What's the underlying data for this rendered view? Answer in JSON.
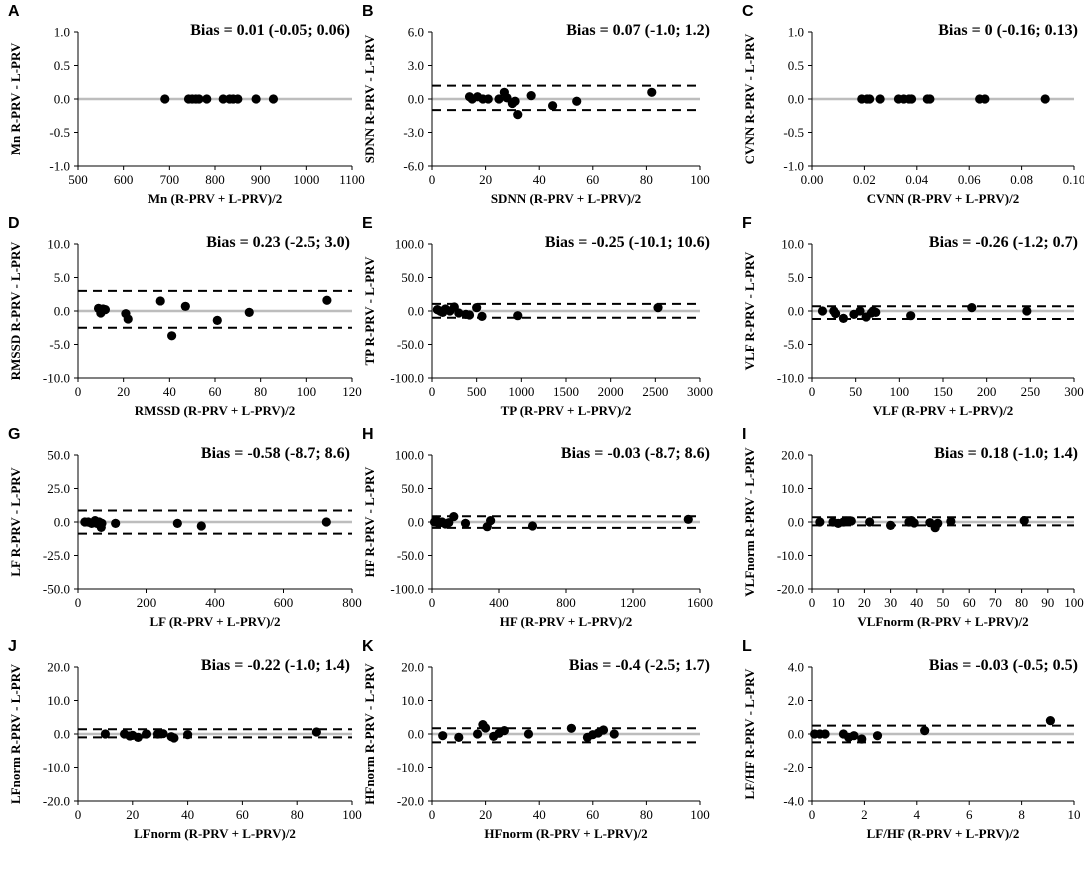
{
  "chart_data": [
    {
      "id": "A",
      "type": "scatter",
      "bias_text": "Bias = 0.01 (-0.05; 0.06)",
      "xlabel": "Mn  (R-PRV + L-PRV)/2",
      "ylabel": "Mn  R-PRV - L-PRV",
      "xlim": [
        500,
        1100
      ],
      "ylim": [
        -1.0,
        1.0
      ],
      "xticks": [
        "500",
        "600",
        "700",
        "800",
        "900",
        "1000",
        "1100"
      ],
      "yticks": [
        "-1.0",
        "-0.5",
        "0.0",
        "0.5",
        "1.0"
      ],
      "bias": 0.01,
      "loa_lower": -0.05,
      "loa_upper": 0.06,
      "show_loa": false,
      "x": [
        690,
        742,
        750,
        758,
        765,
        782,
        818,
        832,
        840,
        850,
        890,
        928
      ],
      "y": [
        0,
        0,
        0,
        0,
        0,
        0,
        0,
        0,
        0,
        0,
        0,
        0
      ]
    },
    {
      "id": "B",
      "type": "scatter",
      "bias_text": "Bias = 0.07 (-1.0; 1.2)",
      "xlabel": "SDNN  (R-PRV + L-PRV)/2",
      "ylabel": "SDNN  R-PRV - L-PRV",
      "xlim": [
        0,
        100
      ],
      "ylim": [
        -6.0,
        6.0
      ],
      "xticks": [
        "0",
        "20",
        "40",
        "60",
        "80",
        "100"
      ],
      "yticks": [
        "-6.0",
        "-3.0",
        "0.0",
        "3.0",
        "6.0"
      ],
      "bias": 0.07,
      "loa_lower": -1.0,
      "loa_upper": 1.2,
      "show_loa": true,
      "x": [
        14,
        15,
        17,
        19,
        21,
        25,
        27,
        28,
        30,
        31,
        32,
        37,
        45,
        54,
        82
      ],
      "y": [
        0.2,
        0.0,
        0.2,
        0.0,
        0.0,
        0.0,
        0.6,
        0.1,
        -0.4,
        -0.2,
        -1.4,
        0.3,
        -0.6,
        -0.2,
        0.6
      ]
    },
    {
      "id": "C",
      "type": "scatter",
      "bias_text": "Bias = 0 (-0.16; 0.13)",
      "xlabel": "CVNN  (R-PRV + L-PRV)/2",
      "ylabel": "CVNN  R-PRV - L-PRV",
      "xlim": [
        0,
        0.1
      ],
      "ylim": [
        -1.0,
        1.0
      ],
      "xticks": [
        "0.00",
        "0.02",
        "0.04",
        "0.06",
        "0.08",
        "0.10"
      ],
      "yticks": [
        "-1.0",
        "-0.5",
        "0.0",
        "0.5",
        "1.0"
      ],
      "bias": 0,
      "loa_lower": -0.16,
      "loa_upper": 0.13,
      "show_loa": false,
      "x": [
        0.019,
        0.021,
        0.022,
        0.026,
        0.033,
        0.035,
        0.037,
        0.038,
        0.044,
        0.045,
        0.064,
        0.066,
        0.089
      ],
      "y": [
        0,
        0,
        0,
        0,
        0,
        0,
        0,
        0,
        0,
        0,
        0,
        0,
        0
      ]
    },
    {
      "id": "D",
      "type": "scatter",
      "bias_text": "Bias = 0.23 (-2.5; 3.0)",
      "xlabel": "RMSSD  (R-PRV + L-PRV)/2",
      "ylabel": "RMSSD  R-PRV - L-PRV",
      "xlim": [
        0,
        120
      ],
      "ylim": [
        -10.0,
        10.0
      ],
      "xticks": [
        "0",
        "20",
        "40",
        "60",
        "80",
        "100",
        "120"
      ],
      "yticks": [
        "-10.0",
        "-5.0",
        "0.0",
        "5.0",
        "10.0"
      ],
      "bias": 0.23,
      "loa_lower": -2.5,
      "loa_upper": 3.0,
      "show_loa": true,
      "x": [
        9,
        10,
        11,
        12,
        21,
        22,
        36,
        41,
        47,
        61,
        75,
        109
      ],
      "y": [
        0.4,
        -0.3,
        0.3,
        0.2,
        -0.4,
        -1.2,
        1.5,
        -3.7,
        0.7,
        -1.4,
        -0.2,
        1.6
      ]
    },
    {
      "id": "E",
      "type": "scatter",
      "bias_text": "Bias = -0.25 (-10.1; 10.6)",
      "xlabel": "TP  (R-PRV + L-PRV)/2",
      "ylabel": "TP  R-PRV - L-PRV",
      "xlim": [
        0,
        3000
      ],
      "ylim": [
        -100.0,
        100.0
      ],
      "xticks": [
        "0",
        "500",
        "1000",
        "1500",
        "2000",
        "2500",
        "3000"
      ],
      "yticks": [
        "-100.0",
        "-50.0",
        "0.0",
        "50.0",
        "100.0"
      ],
      "bias": -0.25,
      "loa_lower": -10.1,
      "loa_upper": 10.6,
      "show_loa": true,
      "x": [
        60,
        90,
        120,
        150,
        200,
        250,
        300,
        380,
        420,
        500,
        560,
        960,
        2530
      ],
      "y": [
        2,
        0,
        -2,
        3,
        0,
        6,
        -3,
        -5,
        -6,
        5,
        -8,
        -7,
        5
      ]
    },
    {
      "id": "F",
      "type": "scatter",
      "bias_text": "Bias = -0.26 (-1.2; 0.7)",
      "xlabel": "VLF  (R-PRV + L-PRV)/2",
      "ylabel": "VLF  R-PRV - L-PRV",
      "xlim": [
        0,
        300
      ],
      "ylim": [
        -10.0,
        10.0
      ],
      "xticks": [
        "0",
        "50",
        "100",
        "150",
        "200",
        "250",
        "300"
      ],
      "yticks": [
        "-10.0",
        "-5.0",
        "0.0",
        "5.0",
        "10.0"
      ],
      "bias": -0.26,
      "loa_lower": -1.2,
      "loa_upper": 0.7,
      "show_loa": true,
      "x": [
        12,
        25,
        27,
        36,
        48,
        55,
        62,
        68,
        70,
        73,
        113,
        183,
        246
      ],
      "y": [
        0,
        0,
        -0.4,
        -1.1,
        -0.5,
        0,
        -0.9,
        -0.3,
        0,
        -0.2,
        -0.7,
        0.5,
        0
      ]
    },
    {
      "id": "G",
      "type": "scatter",
      "bias_text": "Bias = -0.58 (-8.7; 8.6)",
      "xlabel": "LF  (R-PRV + L-PRV)/2",
      "ylabel": "LF  R-PRV - L-PRV",
      "xlim": [
        0,
        800
      ],
      "ylim": [
        -50.0,
        50.0
      ],
      "xticks": [
        "0",
        "200",
        "400",
        "600",
        "800"
      ],
      "yticks": [
        "-50.0",
        "-25.0",
        "0.0",
        "25.0",
        "50.0"
      ],
      "bias": -0.58,
      "loa_lower": -8.7,
      "loa_upper": 8.6,
      "show_loa": true,
      "x": [
        20,
        30,
        40,
        50,
        55,
        62,
        68,
        70,
        110,
        290,
        360,
        725
      ],
      "y": [
        0,
        0,
        -1,
        1,
        -1,
        0,
        -4,
        -1,
        -1,
        -1,
        -3,
        0
      ]
    },
    {
      "id": "H",
      "type": "scatter",
      "bias_text": "Bias = -0.03 (-8.7; 8.6)",
      "xlabel": "HF  (R-PRV + L-PRV)/2",
      "ylabel": "HF  R-PRV - L-PRV",
      "xlim": [
        0,
        1600
      ],
      "ylim": [
        -100.0,
        100.0
      ],
      "xticks": [
        "0",
        "400",
        "800",
        "1200",
        "1600"
      ],
      "yticks": [
        "-100.0",
        "-50.0",
        "0.0",
        "50.0",
        "100.0"
      ],
      "bias": -0.03,
      "loa_lower": -8.7,
      "loa_upper": 8.6,
      "show_loa": true,
      "x": [
        15,
        25,
        40,
        60,
        80,
        100,
        130,
        200,
        330,
        350,
        600,
        1530
      ],
      "y": [
        0,
        3,
        -2,
        0,
        -3,
        -1,
        8,
        -2,
        -7,
        2,
        -6,
        4
      ]
    },
    {
      "id": "I",
      "type": "scatter",
      "bias_text": "Bias = 0.18 (-1.0; 1.4)",
      "xlabel": "VLFnorm  (R-PRV + L-PRV)/2",
      "ylabel": "VLFnorm R-PRV - L-PRV",
      "xlim": [
        0,
        100
      ],
      "ylim": [
        -20.0,
        20.0
      ],
      "xticks": [
        "0",
        "10",
        "20",
        "30",
        "40",
        "50",
        "60",
        "70",
        "80",
        "90",
        "100"
      ],
      "yticks": [
        "-20.0",
        "-10.0",
        "0.0",
        "10.0",
        "20.0"
      ],
      "bias": 0.18,
      "loa_lower": -1.0,
      "loa_upper": 1.4,
      "show_loa": true,
      "x": [
        3,
        8,
        10,
        12,
        13,
        15,
        22,
        30,
        37,
        38,
        39,
        45,
        47,
        48,
        53,
        81
      ],
      "y": [
        0,
        0,
        -0.4,
        0,
        0.3,
        0.3,
        0,
        -1.0,
        0,
        0.4,
        -0.3,
        -0.2,
        -1.7,
        -0.4,
        0.2,
        0.4
      ]
    },
    {
      "id": "J",
      "type": "scatter",
      "bias_text": "Bias = -0.22 (-1.0; 1.4)",
      "xlabel": "LFnorm  (R-PRV + L-PRV)/2",
      "ylabel": "LFnorm R-PRV - L-PRV",
      "xlim": [
        0,
        100
      ],
      "ylim": [
        -20.0,
        20.0
      ],
      "xticks": [
        "0",
        "20",
        "40",
        "60",
        "80",
        "100"
      ],
      "yticks": [
        "-20.0",
        "-10.0",
        "0.0",
        "10.0",
        "20.0"
      ],
      "bias": -0.22,
      "loa_lower": -1.0,
      "loa_upper": 1.4,
      "show_loa": true,
      "x": [
        10,
        17,
        19,
        20,
        22,
        25,
        29,
        31,
        34,
        35,
        40,
        87
      ],
      "y": [
        0,
        0,
        -0.6,
        -0.4,
        -1.0,
        0,
        0,
        0.1,
        -0.8,
        -1.2,
        -0.2,
        0.6
      ]
    },
    {
      "id": "K",
      "type": "scatter",
      "bias_text": "Bias = -0.4 (-2.5; 1.7)",
      "xlabel": "HFnorm  (R-PRV + L-PRV)/2",
      "ylabel": "HFnorm R-PRV - L-PRV",
      "xlim": [
        0,
        100
      ],
      "ylim": [
        -20.0,
        20.0
      ],
      "xticks": [
        "0",
        "20",
        "40",
        "60",
        "80",
        "100"
      ],
      "yticks": [
        "-20.0",
        "-10.0",
        "0.0",
        "10.0",
        "20.0"
      ],
      "bias": -0.4,
      "loa_lower": -2.5,
      "loa_upper": 1.7,
      "show_loa": true,
      "x": [
        4,
        10,
        17,
        19,
        20,
        23,
        25,
        27,
        36,
        52,
        58,
        60,
        62,
        64,
        68
      ],
      "y": [
        -0.5,
        -1.0,
        0,
        2.8,
        1.8,
        -0.7,
        0.2,
        1.0,
        0,
        1.7,
        -1.0,
        -0.2,
        0.3,
        1.2,
        0
      ]
    },
    {
      "id": "L",
      "type": "scatter",
      "bias_text": "Bias = -0.03 (-0.5; 0.5)",
      "xlabel": "LF/HF  (R-PRV + L-PRV)/2",
      "ylabel": "LF/HF  R-PRV - L-PRV",
      "xlim": [
        0,
        10
      ],
      "ylim": [
        -4.0,
        4.0
      ],
      "xticks": [
        "0",
        "2",
        "4",
        "6",
        "8",
        "10"
      ],
      "yticks": [
        "-4.0",
        "-2.0",
        "0.0",
        "2.0",
        "4.0"
      ],
      "bias": -0.03,
      "loa_lower": -0.5,
      "loa_upper": 0.5,
      "show_loa": true,
      "x": [
        0.1,
        0.3,
        0.5,
        1.2,
        1.4,
        1.6,
        1.9,
        2.5,
        4.3,
        9.1
      ],
      "y": [
        0,
        0,
        0,
        0,
        -0.2,
        -0.1,
        -0.3,
        -0.1,
        0.2,
        0.8
      ]
    }
  ]
}
